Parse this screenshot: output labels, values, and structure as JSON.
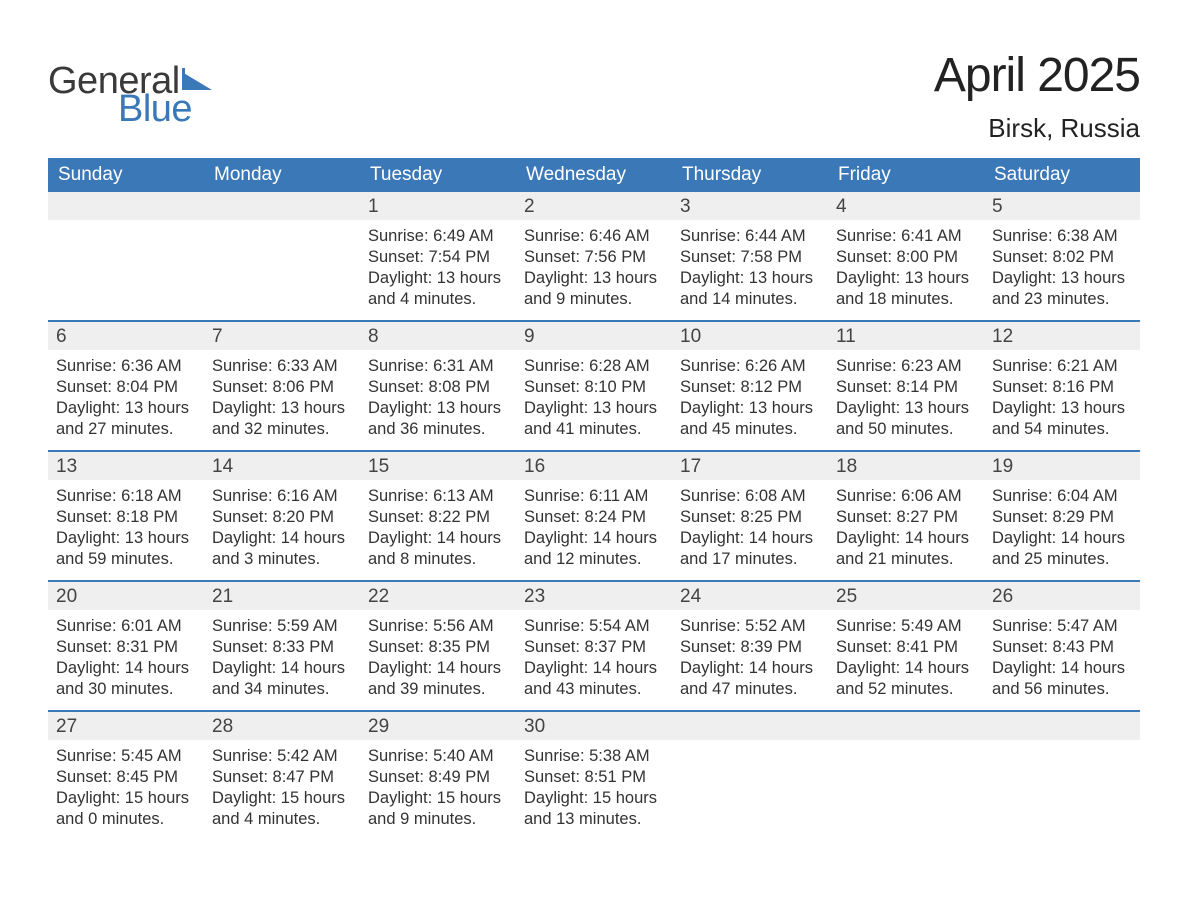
{
  "logo": {
    "general": "General",
    "blue": "Blue",
    "flag_color": "#3b78b8"
  },
  "title": "April 2025",
  "location": "Birsk, Russia",
  "colors": {
    "header_bg": "#3b78b8",
    "header_text": "#ffffff",
    "daynum_bg": "#efefef",
    "body_text": "#333333",
    "page_bg": "#ffffff"
  },
  "day_names": [
    "Sunday",
    "Monday",
    "Tuesday",
    "Wednesday",
    "Thursday",
    "Friday",
    "Saturday"
  ],
  "weeks": [
    [
      {
        "day": "",
        "sunrise": "",
        "sunset": "",
        "daylight": ""
      },
      {
        "day": "",
        "sunrise": "",
        "sunset": "",
        "daylight": ""
      },
      {
        "day": "1",
        "sunrise": "Sunrise: 6:49 AM",
        "sunset": "Sunset: 7:54 PM",
        "daylight": "Daylight: 13 hours and 4 minutes."
      },
      {
        "day": "2",
        "sunrise": "Sunrise: 6:46 AM",
        "sunset": "Sunset: 7:56 PM",
        "daylight": "Daylight: 13 hours and 9 minutes."
      },
      {
        "day": "3",
        "sunrise": "Sunrise: 6:44 AM",
        "sunset": "Sunset: 7:58 PM",
        "daylight": "Daylight: 13 hours and 14 minutes."
      },
      {
        "day": "4",
        "sunrise": "Sunrise: 6:41 AM",
        "sunset": "Sunset: 8:00 PM",
        "daylight": "Daylight: 13 hours and 18 minutes."
      },
      {
        "day": "5",
        "sunrise": "Sunrise: 6:38 AM",
        "sunset": "Sunset: 8:02 PM",
        "daylight": "Daylight: 13 hours and 23 minutes."
      }
    ],
    [
      {
        "day": "6",
        "sunrise": "Sunrise: 6:36 AM",
        "sunset": "Sunset: 8:04 PM",
        "daylight": "Daylight: 13 hours and 27 minutes."
      },
      {
        "day": "7",
        "sunrise": "Sunrise: 6:33 AM",
        "sunset": "Sunset: 8:06 PM",
        "daylight": "Daylight: 13 hours and 32 minutes."
      },
      {
        "day": "8",
        "sunrise": "Sunrise: 6:31 AM",
        "sunset": "Sunset: 8:08 PM",
        "daylight": "Daylight: 13 hours and 36 minutes."
      },
      {
        "day": "9",
        "sunrise": "Sunrise: 6:28 AM",
        "sunset": "Sunset: 8:10 PM",
        "daylight": "Daylight: 13 hours and 41 minutes."
      },
      {
        "day": "10",
        "sunrise": "Sunrise: 6:26 AM",
        "sunset": "Sunset: 8:12 PM",
        "daylight": "Daylight: 13 hours and 45 minutes."
      },
      {
        "day": "11",
        "sunrise": "Sunrise: 6:23 AM",
        "sunset": "Sunset: 8:14 PM",
        "daylight": "Daylight: 13 hours and 50 minutes."
      },
      {
        "day": "12",
        "sunrise": "Sunrise: 6:21 AM",
        "sunset": "Sunset: 8:16 PM",
        "daylight": "Daylight: 13 hours and 54 minutes."
      }
    ],
    [
      {
        "day": "13",
        "sunrise": "Sunrise: 6:18 AM",
        "sunset": "Sunset: 8:18 PM",
        "daylight": "Daylight: 13 hours and 59 minutes."
      },
      {
        "day": "14",
        "sunrise": "Sunrise: 6:16 AM",
        "sunset": "Sunset: 8:20 PM",
        "daylight": "Daylight: 14 hours and 3 minutes."
      },
      {
        "day": "15",
        "sunrise": "Sunrise: 6:13 AM",
        "sunset": "Sunset: 8:22 PM",
        "daylight": "Daylight: 14 hours and 8 minutes."
      },
      {
        "day": "16",
        "sunrise": "Sunrise: 6:11 AM",
        "sunset": "Sunset: 8:24 PM",
        "daylight": "Daylight: 14 hours and 12 minutes."
      },
      {
        "day": "17",
        "sunrise": "Sunrise: 6:08 AM",
        "sunset": "Sunset: 8:25 PM",
        "daylight": "Daylight: 14 hours and 17 minutes."
      },
      {
        "day": "18",
        "sunrise": "Sunrise: 6:06 AM",
        "sunset": "Sunset: 8:27 PM",
        "daylight": "Daylight: 14 hours and 21 minutes."
      },
      {
        "day": "19",
        "sunrise": "Sunrise: 6:04 AM",
        "sunset": "Sunset: 8:29 PM",
        "daylight": "Daylight: 14 hours and 25 minutes."
      }
    ],
    [
      {
        "day": "20",
        "sunrise": "Sunrise: 6:01 AM",
        "sunset": "Sunset: 8:31 PM",
        "daylight": "Daylight: 14 hours and 30 minutes."
      },
      {
        "day": "21",
        "sunrise": "Sunrise: 5:59 AM",
        "sunset": "Sunset: 8:33 PM",
        "daylight": "Daylight: 14 hours and 34 minutes."
      },
      {
        "day": "22",
        "sunrise": "Sunrise: 5:56 AM",
        "sunset": "Sunset: 8:35 PM",
        "daylight": "Daylight: 14 hours and 39 minutes."
      },
      {
        "day": "23",
        "sunrise": "Sunrise: 5:54 AM",
        "sunset": "Sunset: 8:37 PM",
        "daylight": "Daylight: 14 hours and 43 minutes."
      },
      {
        "day": "24",
        "sunrise": "Sunrise: 5:52 AM",
        "sunset": "Sunset: 8:39 PM",
        "daylight": "Daylight: 14 hours and 47 minutes."
      },
      {
        "day": "25",
        "sunrise": "Sunrise: 5:49 AM",
        "sunset": "Sunset: 8:41 PM",
        "daylight": "Daylight: 14 hours and 52 minutes."
      },
      {
        "day": "26",
        "sunrise": "Sunrise: 5:47 AM",
        "sunset": "Sunset: 8:43 PM",
        "daylight": "Daylight: 14 hours and 56 minutes."
      }
    ],
    [
      {
        "day": "27",
        "sunrise": "Sunrise: 5:45 AM",
        "sunset": "Sunset: 8:45 PM",
        "daylight": "Daylight: 15 hours and 0 minutes."
      },
      {
        "day": "28",
        "sunrise": "Sunrise: 5:42 AM",
        "sunset": "Sunset: 8:47 PM",
        "daylight": "Daylight: 15 hours and 4 minutes."
      },
      {
        "day": "29",
        "sunrise": "Sunrise: 5:40 AM",
        "sunset": "Sunset: 8:49 PM",
        "daylight": "Daylight: 15 hours and 9 minutes."
      },
      {
        "day": "30",
        "sunrise": "Sunrise: 5:38 AM",
        "sunset": "Sunset: 8:51 PM",
        "daylight": "Daylight: 15 hours and 13 minutes."
      },
      {
        "day": "",
        "sunrise": "",
        "sunset": "",
        "daylight": ""
      },
      {
        "day": "",
        "sunrise": "",
        "sunset": "",
        "daylight": ""
      },
      {
        "day": "",
        "sunrise": "",
        "sunset": "",
        "daylight": ""
      }
    ]
  ]
}
